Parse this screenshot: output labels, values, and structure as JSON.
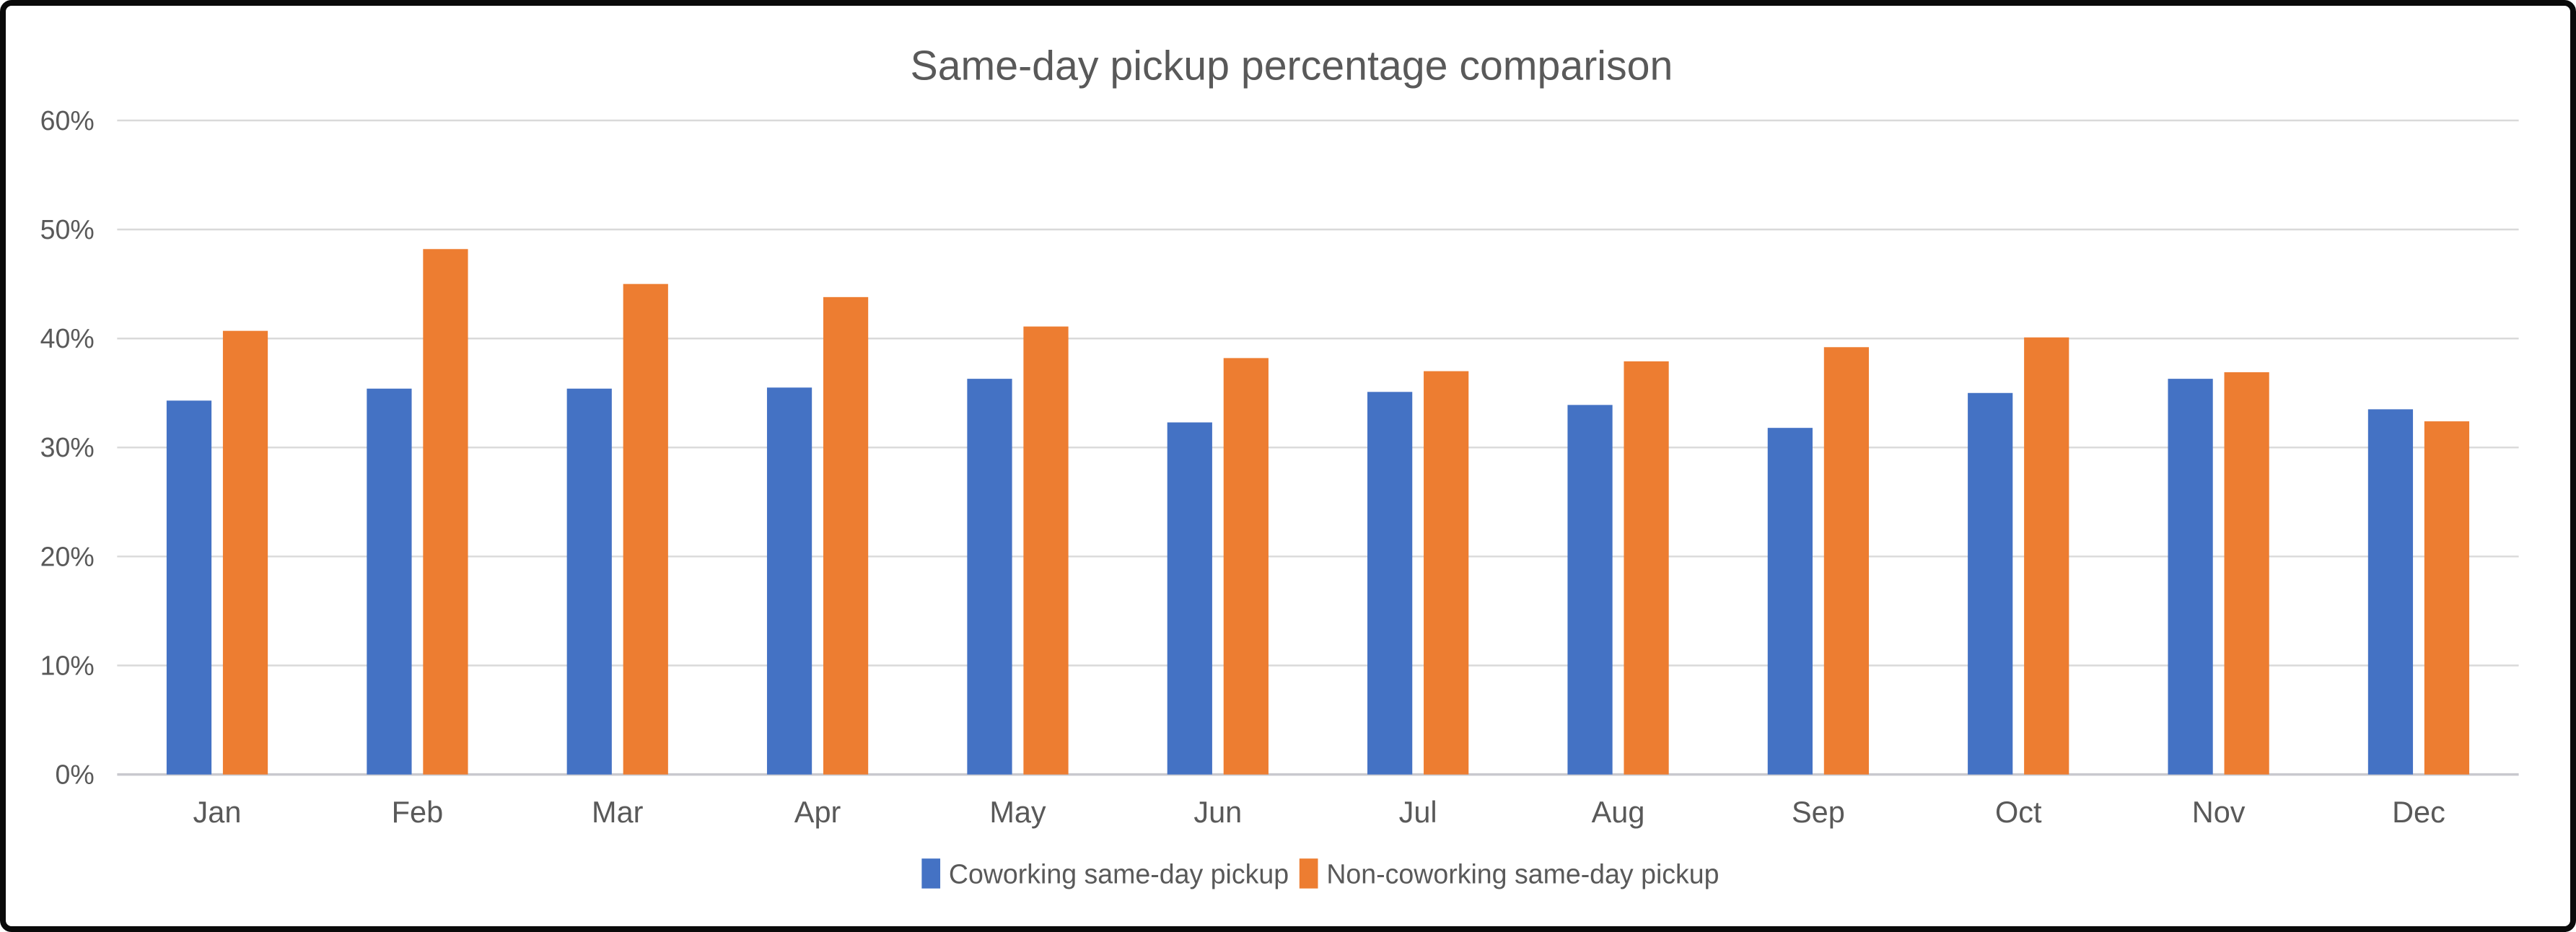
{
  "frame": {
    "border_color": "#0a0a0a",
    "background_color": "#ffffff"
  },
  "chart_data": {
    "type": "bar",
    "title": "Same-day pickup percentage comparison",
    "categories": [
      "Jan",
      "Feb",
      "Mar",
      "Apr",
      "May",
      "Jun",
      "Jul",
      "Aug",
      "Sep",
      "Oct",
      "Nov",
      "Dec"
    ],
    "series": [
      {
        "name": "Coworking same-day pickup",
        "color": "#4472C4",
        "values": [
          34.3,
          35.4,
          35.4,
          35.5,
          36.3,
          32.3,
          35.1,
          33.9,
          31.8,
          35.0,
          36.3,
          33.5
        ]
      },
      {
        "name": "Non-coworking same-day pickup",
        "color": "#ED7D31",
        "values": [
          40.7,
          48.2,
          45.0,
          43.8,
          41.1,
          38.2,
          37.0,
          37.9,
          39.2,
          40.1,
          36.9,
          32.4
        ]
      }
    ],
    "xlabel": "",
    "ylabel": "",
    "y_axis": {
      "min": 0,
      "max": 60,
      "step": 10,
      "tick_labels": [
        "0%",
        "10%",
        "20%",
        "30%",
        "40%",
        "50%",
        "60%"
      ],
      "format": "percent"
    },
    "grid": true,
    "legend_position": "bottom",
    "text_color": "#595959",
    "gridline_color": "#D9D9D9",
    "baseline_color": "#C9C9CE"
  }
}
